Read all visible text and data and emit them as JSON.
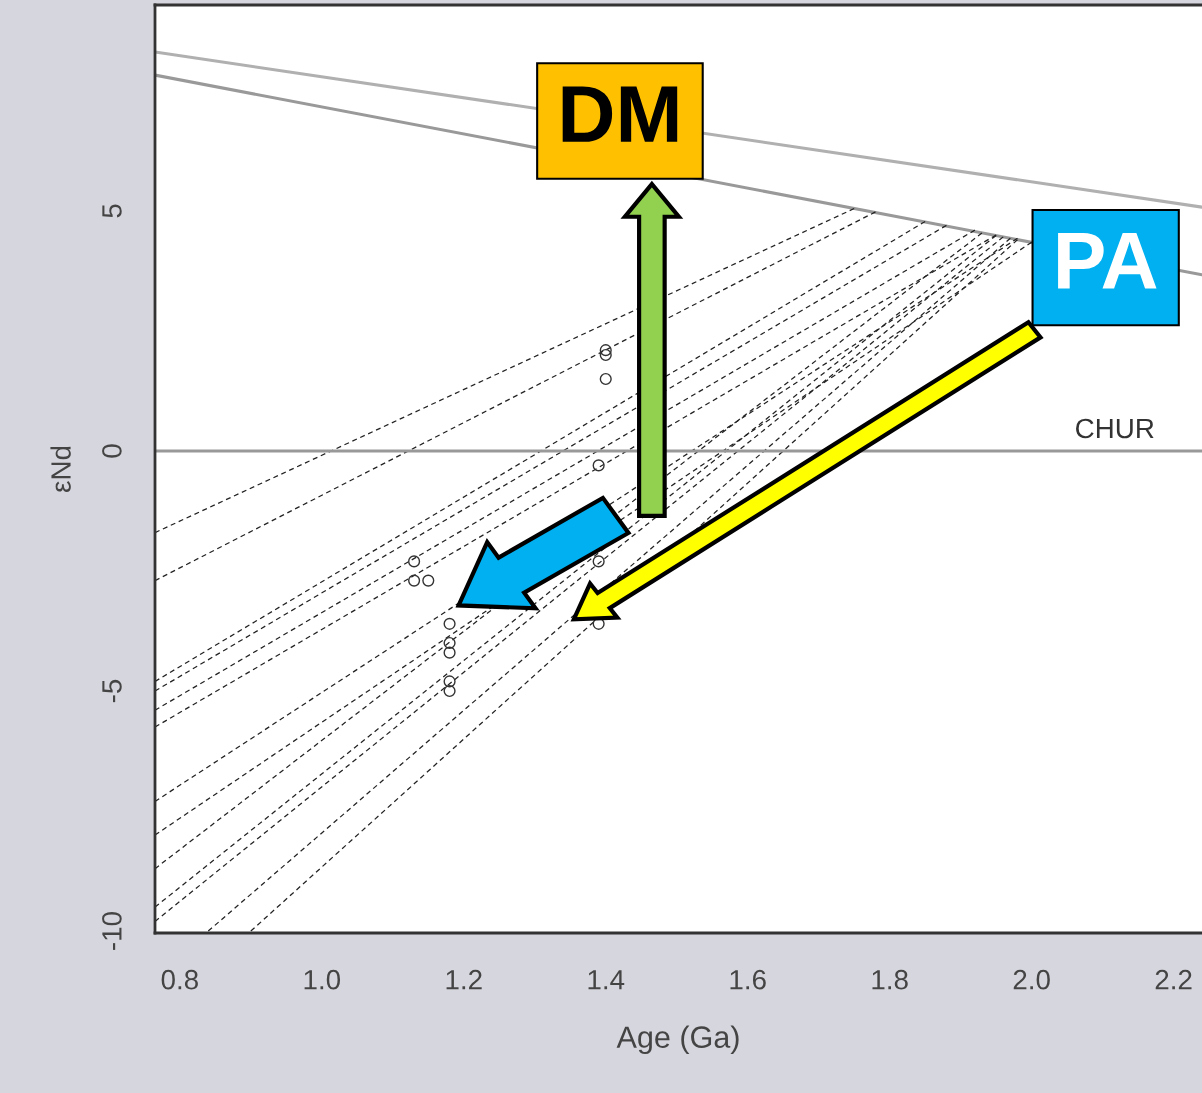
{
  "chart_data": {
    "type": "line",
    "xlabel": "Age (Ga)",
    "ylabel": "εNd",
    "xlim": [
      0.765,
      2.24
    ],
    "xticks": [
      {
        "value": 0.8,
        "label": "0.8"
      },
      {
        "value": 1.0,
        "label": "1.0"
      },
      {
        "value": 1.2,
        "label": "1.2"
      },
      {
        "value": 1.4,
        "label": "1.4"
      },
      {
        "value": 1.6,
        "label": "1.6"
      },
      {
        "value": 1.8,
        "label": "1.8"
      },
      {
        "value": 2.0,
        "label": "2.0"
      },
      {
        "value": 2.2,
        "label": "2.2"
      }
    ],
    "ylim": [
      -10.04,
      9.29
    ],
    "yticks": [
      -10,
      -5,
      0,
      5
    ],
    "grid": false,
    "legend": false,
    "ref_lines": [
      {
        "axis": "y",
        "value": 0,
        "label": "CHUR",
        "color": "#999999"
      }
    ],
    "annotations": [
      {
        "text": "DM",
        "x": 1.465,
        "y": 5.86
      },
      "PA"
    ],
    "series": [
      {
        "color": "#b0b0b0",
        "x": [
          0.765,
          2.24
        ],
        "values": [
          8.31,
          5.08
        ],
        "line_style": "solid"
      },
      {
        "color": "#999999",
        "x": [
          0.765,
          2.24
        ],
        "values": [
          7.83,
          3.67
        ],
        "line_style": "solid"
      },
      {
        "color": "#222222",
        "x": [
          0.765,
          1.75
        ],
        "values": [
          -1.7,
          5.05
        ],
        "line_style": "dashed"
      },
      {
        "color": "#222222",
        "x": [
          0.765,
          1.78
        ],
        "values": [
          -2.7,
          4.98
        ],
        "line_style": "dashed"
      },
      {
        "color": "#222222",
        "x": [
          0.765,
          1.85
        ],
        "values": [
          -4.8,
          4.78
        ],
        "line_style": "dashed"
      },
      {
        "color": "#222222",
        "x": [
          0.765,
          1.88
        ],
        "values": [
          -5.0,
          4.7
        ],
        "line_style": "dashed"
      },
      {
        "color": "#222222",
        "x": [
          0.765,
          1.92
        ],
        "values": [
          -5.4,
          4.6
        ],
        "line_style": "dashed"
      },
      {
        "color": "#222222",
        "x": [
          0.765,
          1.95
        ],
        "values": [
          -5.75,
          4.5
        ],
        "line_style": "dashed"
      },
      {
        "color": "#222222",
        "x": [
          0.765,
          1.98
        ],
        "values": [
          -7.3,
          4.43
        ],
        "line_style": "dashed"
      },
      {
        "color": "#222222",
        "x": [
          0.765,
          2.0
        ],
        "values": [
          -8.0,
          4.35
        ],
        "line_style": "dashed"
      },
      {
        "color": "#222222",
        "x": [
          0.765,
          1.93
        ],
        "values": [
          -8.7,
          4.54
        ],
        "line_style": "dashed"
      },
      {
        "color": "#222222",
        "x": [
          0.765,
          1.95
        ],
        "values": [
          -9.5,
          4.49
        ],
        "line_style": "dashed"
      },
      {
        "color": "#222222",
        "x": [
          0.765,
          1.96
        ],
        "values": [
          -9.8,
          4.46
        ],
        "line_style": "dashed"
      },
      {
        "color": "#222222",
        "x": [
          0.84,
          1.97
        ],
        "values": [
          -10.0,
          4.43
        ],
        "line_style": "dashed"
      },
      {
        "color": "#222222",
        "x": [
          0.9,
          1.98
        ],
        "values": [
          -10.0,
          4.4
        ],
        "line_style": "dashed"
      },
      {
        "type": "scatter",
        "color": "#333333",
        "marker": "circle",
        "x": [
          1.13,
          1.13,
          1.15,
          1.18,
          1.18,
          1.18,
          1.18,
          1.18,
          1.4,
          1.4,
          1.4,
          1.39,
          1.39,
          1.39
        ],
        "values": [
          -2.3,
          -2.7,
          -2.7,
          -3.6,
          -4.0,
          -4.2,
          -4.8,
          -5.0,
          2.1,
          2.0,
          1.5,
          -0.3,
          -2.3,
          -3.6
        ]
      }
    ]
  }
}
